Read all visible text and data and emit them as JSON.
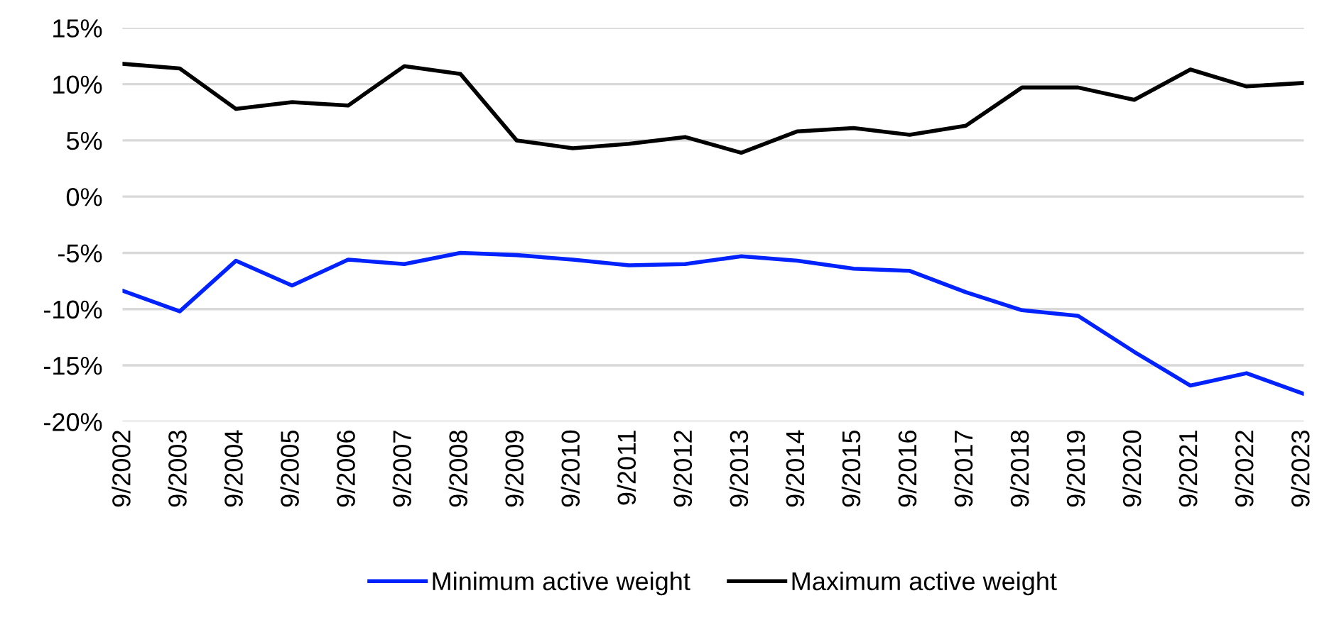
{
  "chart_data": {
    "type": "line",
    "categories": [
      "9/2002",
      "9/2003",
      "9/2004",
      "9/2005",
      "9/2006",
      "9/2007",
      "9/2008",
      "9/2009",
      "9/2010",
      "9/2011",
      "9/2012",
      "9/2013",
      "9/2014",
      "9/2015",
      "9/2016",
      "9/2017",
      "9/2018",
      "9/2019",
      "9/2020",
      "9/2021",
      "9/2022",
      "9/2023"
    ],
    "series": [
      {
        "name": "Minimum active weight",
        "color": "#0022ff",
        "values": [
          -8.4,
          -10.2,
          -5.7,
          -7.9,
          -5.6,
          -6.0,
          -5.0,
          -5.2,
          -5.6,
          -6.1,
          -6.0,
          -5.3,
          -5.7,
          -6.4,
          -6.6,
          -8.5,
          -10.1,
          -10.6,
          -13.8,
          -16.8,
          -15.7,
          -17.5
        ]
      },
      {
        "name": "Maximum active weight",
        "color": "#000000",
        "values": [
          11.8,
          11.4,
          7.8,
          8.4,
          8.1,
          11.6,
          10.9,
          5.0,
          4.3,
          4.7,
          5.3,
          3.9,
          5.8,
          6.1,
          5.5,
          6.3,
          9.7,
          9.7,
          8.6,
          11.3,
          9.8,
          10.1
        ]
      }
    ],
    "ylim": [
      -20,
      15
    ],
    "yticks": [
      {
        "value": -20,
        "label": "-20%"
      },
      {
        "value": -15,
        "label": "-15%"
      },
      {
        "value": -10,
        "label": "-10%"
      },
      {
        "value": -5,
        "label": "-5%"
      },
      {
        "value": 0,
        "label": "0%"
      },
      {
        "value": 5,
        "label": "5%"
      },
      {
        "value": 10,
        "label": "10%"
      },
      {
        "value": 15,
        "label": "15%"
      }
    ],
    "grid": "y",
    "legend": "bottom",
    "marker": "none",
    "line_style": "solid"
  }
}
